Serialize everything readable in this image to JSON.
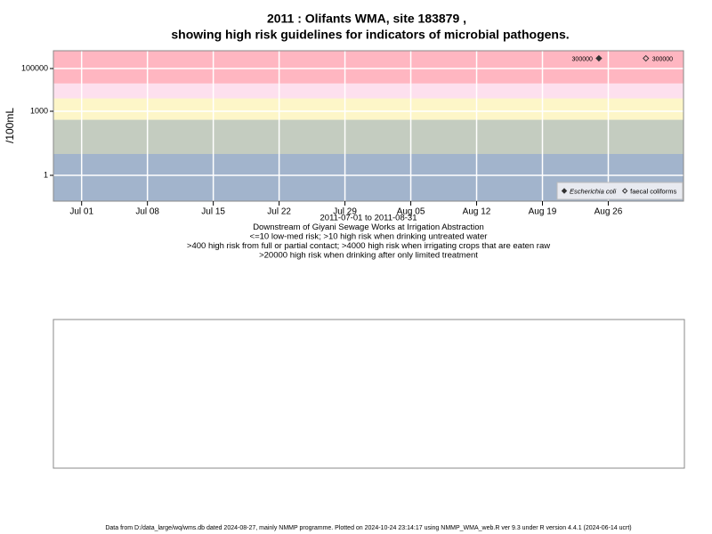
{
  "chart_data": {
    "type": "scatter",
    "title": [
      "2011 : Olifants WMA, site 183879 ,",
      "showing high risk guidelines for indicators of microbial pathogens."
    ],
    "ylabel": "/100mL",
    "xlabel": [
      "2011-07-01 to 2011-08-31",
      "Downstream of Giyani Sewage Works at Irrigation Abstraction",
      "<=10 low-med risk; >10 high risk when drinking untreated water",
      ">400 high risk from full or partial contact; >4000 high risk when irrigating crops that are eaten raw",
      ">20000 high risk when drinking after only limited treatment"
    ],
    "log_y": true,
    "grid": true,
    "legend_position": "bottom-right",
    "xlim": [
      "2011-06-28",
      "2011-09-03"
    ],
    "xticks": [
      {
        "value": "2011-07-01",
        "label": "Jul 01"
      },
      {
        "value": "2011-07-08",
        "label": "Jul 08"
      },
      {
        "value": "2011-07-15",
        "label": "Jul 15"
      },
      {
        "value": "2011-07-22",
        "label": "Jul 22"
      },
      {
        "value": "2011-07-29",
        "label": "Jul 29"
      },
      {
        "value": "2011-08-05",
        "label": "Aug 05"
      },
      {
        "value": "2011-08-12",
        "label": "Aug 12"
      },
      {
        "value": "2011-08-19",
        "label": "Aug 19"
      },
      {
        "value": "2011-08-26",
        "label": "Aug 26"
      }
    ],
    "ylim": [
      0.062,
      681000
    ],
    "yticks": [
      1,
      1000,
      100000
    ],
    "risk_thresholds": [
      10,
      400,
      4000,
      20000
    ],
    "band_colors": [
      "#a2b4cc",
      "#c4ccc0",
      "#fdf6c8",
      "#fde0ee",
      "#ffb6c1"
    ],
    "series": [
      {
        "name": "Escherichia coli",
        "color": "#333333",
        "marker": "filled",
        "x": [
          "2011-08-25"
        ],
        "values": [
          300000
        ],
        "value_labels": [
          "300000"
        ],
        "label_side": "left"
      },
      {
        "name": "faecal coliforms",
        "color": "#333333",
        "marker": "open",
        "x": [
          "2011-08-30"
        ],
        "values": [
          300000
        ],
        "value_labels": [
          "300000"
        ],
        "label_side": "right"
      }
    ]
  },
  "footer": "Data from D:/data_large/wq/wms.db dated 2024-08-27, mainly NMMP programme. Plotted on 2024-10-24 23:14:17 using NMMP_WMA_web.R ver 9.3 under R version 4.4.1 (2024-06-14 ucrt)"
}
